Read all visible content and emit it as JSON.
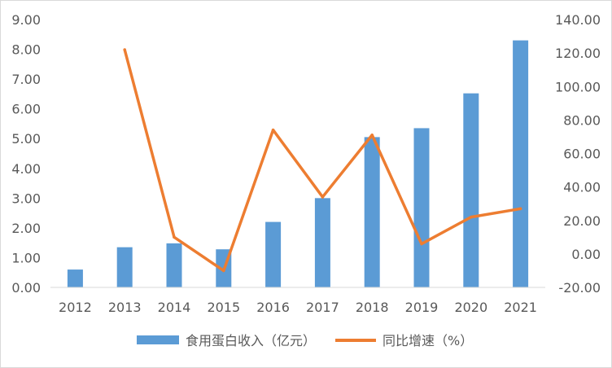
{
  "chart_data": {
    "type": "bar",
    "categories": [
      "2012",
      "2013",
      "2014",
      "2015",
      "2016",
      "2017",
      "2018",
      "2019",
      "2020",
      "2021"
    ],
    "series": [
      {
        "name": "食用蛋白收入（亿元）",
        "type": "bar",
        "axis": "left",
        "color": "#5b9bd5",
        "values": [
          0.6,
          1.35,
          1.48,
          1.28,
          2.2,
          3.0,
          5.05,
          5.35,
          6.52,
          8.3
        ]
      },
      {
        "name": "同比增速（%）",
        "type": "line",
        "axis": "right",
        "color": "#ed7d31",
        "values": [
          null,
          122,
          10,
          -10,
          74,
          34,
          71,
          6,
          22,
          27
        ]
      }
    ],
    "left_axis": {
      "ylim": [
        0,
        9
      ],
      "ticks": [
        0,
        1,
        2,
        3,
        4,
        5,
        6,
        7,
        8,
        9
      ],
      "tick_labels": [
        "0.00",
        "1.00",
        "2.00",
        "3.00",
        "4.00",
        "5.00",
        "6.00",
        "7.00",
        "8.00",
        "9.00"
      ]
    },
    "right_axis": {
      "ylim": [
        -20,
        140
      ],
      "ticks": [
        -20,
        0,
        20,
        40,
        60,
        80,
        100,
        120,
        140
      ],
      "tick_labels": [
        "-20.00",
        "0.00",
        "20.00",
        "40.00",
        "60.00",
        "80.00",
        "100.00",
        "120.00",
        "140.00"
      ]
    },
    "title": "",
    "xlabel": "",
    "grid": false,
    "legend_position": "bottom"
  }
}
